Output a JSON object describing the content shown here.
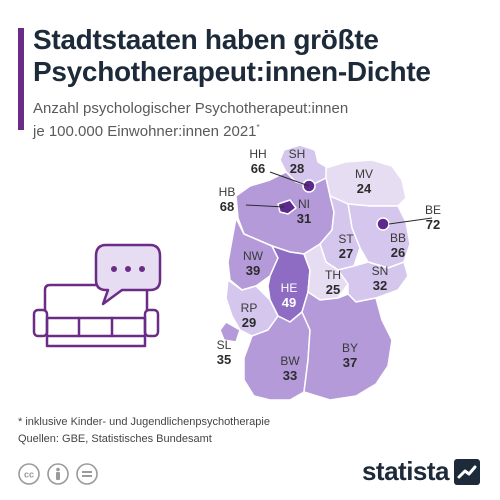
{
  "header": {
    "title_line1": "Stadtstaaten haben größte",
    "title_line2": "Psychotherapeut:innen-Dichte",
    "subtitle_line1": "Anzahl psychologischer Psychotherapeut:innen",
    "subtitle_line2": "je 100.000 Einwohner:innen 2021",
    "subtitle_mark": "*"
  },
  "states": [
    {
      "code": "SH",
      "value": "28"
    },
    {
      "code": "HH",
      "value": "66"
    },
    {
      "code": "MV",
      "value": "24"
    },
    {
      "code": "HB",
      "value": "68"
    },
    {
      "code": "NI",
      "value": "31"
    },
    {
      "code": "BE",
      "value": "72"
    },
    {
      "code": "ST",
      "value": "27"
    },
    {
      "code": "BB",
      "value": "26"
    },
    {
      "code": "NW",
      "value": "39"
    },
    {
      "code": "SN",
      "value": "32"
    },
    {
      "code": "TH",
      "value": "25"
    },
    {
      "code": "HE",
      "value": "49"
    },
    {
      "code": "RP",
      "value": "29"
    },
    {
      "code": "SL",
      "value": "35"
    },
    {
      "code": "BY",
      "value": "37"
    },
    {
      "code": "BW",
      "value": "33"
    }
  ],
  "colors": {
    "accent": "#6a2c86",
    "highest": "#5b2a8c",
    "high": "#8f6cc4",
    "mid": "#b49ad8",
    "low": "#d4c6ec",
    "lowest": "#e6ddf3"
  },
  "footer": {
    "note": "* inklusive Kinder- und Jugendlichenpsychotherapie",
    "source": "Quellen: GBE, Statistisches Bundesamt",
    "logo": "statista"
  }
}
